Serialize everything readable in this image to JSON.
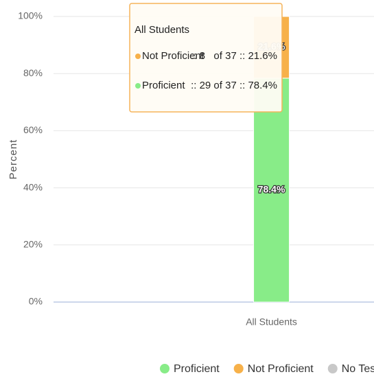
{
  "chart_data": {
    "type": "stacked_bar",
    "categories": [
      "All Students"
    ],
    "series": [
      {
        "name": "Proficient",
        "color": "#88ec88",
        "values": [
          78.4
        ],
        "value_labels": [
          "78.4%"
        ]
      },
      {
        "name": "Not Proficient",
        "color": "#f7b14a",
        "values": [
          21.6
        ],
        "value_labels": [
          "21.6%"
        ]
      },
      {
        "name": "No Test",
        "color": "#c8c8c8",
        "values": [
          0
        ],
        "value_labels": [
          null
        ]
      }
    ],
    "ylabel": "Percent",
    "ylim": [
      0,
      100
    ],
    "yticks": [
      {
        "value": 0,
        "label": "0%"
      },
      {
        "value": 20,
        "label": "20%"
      },
      {
        "value": 40,
        "label": "40%"
      },
      {
        "value": 60,
        "label": "60%"
      },
      {
        "value": 80,
        "label": "80%"
      },
      {
        "value": 100,
        "label": "100%"
      }
    ],
    "grid": true,
    "legend": "bottom",
    "tooltip": {
      "title": "All Students",
      "rows": [
        {
          "label": "Not Proficient",
          "detail": ":: 8   of 37 :: 21.6%"
        },
        {
          "label": "Proficient",
          "detail": ":: 29 of 37 :: 78.4%"
        }
      ]
    }
  }
}
